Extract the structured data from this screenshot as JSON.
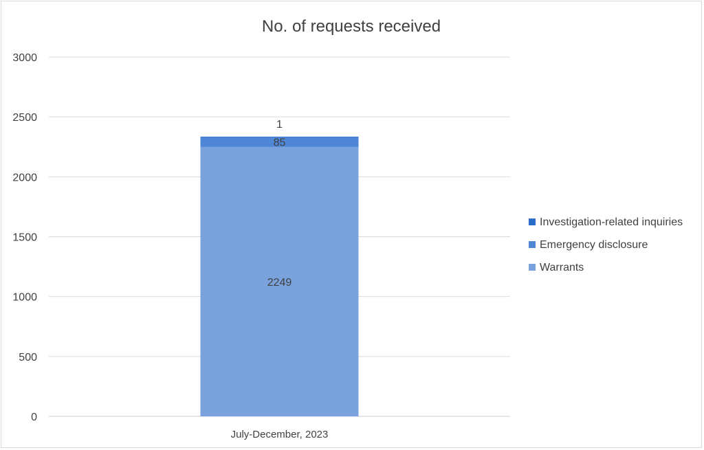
{
  "chart_data": {
    "type": "bar",
    "stacked": true,
    "title": "No. of requests received",
    "categories": [
      "July-December, 2023"
    ],
    "series": [
      {
        "name": "Warrants",
        "values": [
          2249
        ],
        "color": "#7aa3de"
      },
      {
        "name": "Emergency disclosure",
        "values": [
          85
        ],
        "color": "#4f86d5"
      },
      {
        "name": "Investigation-related inquiries",
        "values": [
          1
        ],
        "color": "#2b6cc8"
      }
    ],
    "data_labels": [
      "2249",
      "85",
      "1"
    ],
    "ylim": [
      0,
      3000
    ],
    "yticks": [
      "0",
      "500",
      "1000",
      "1500",
      "2000",
      "2500",
      "3000"
    ],
    "grid": true,
    "legend": "right",
    "legend_order": [
      "Investigation-related inquiries",
      "Emergency disclosure",
      "Warrants"
    ]
  }
}
